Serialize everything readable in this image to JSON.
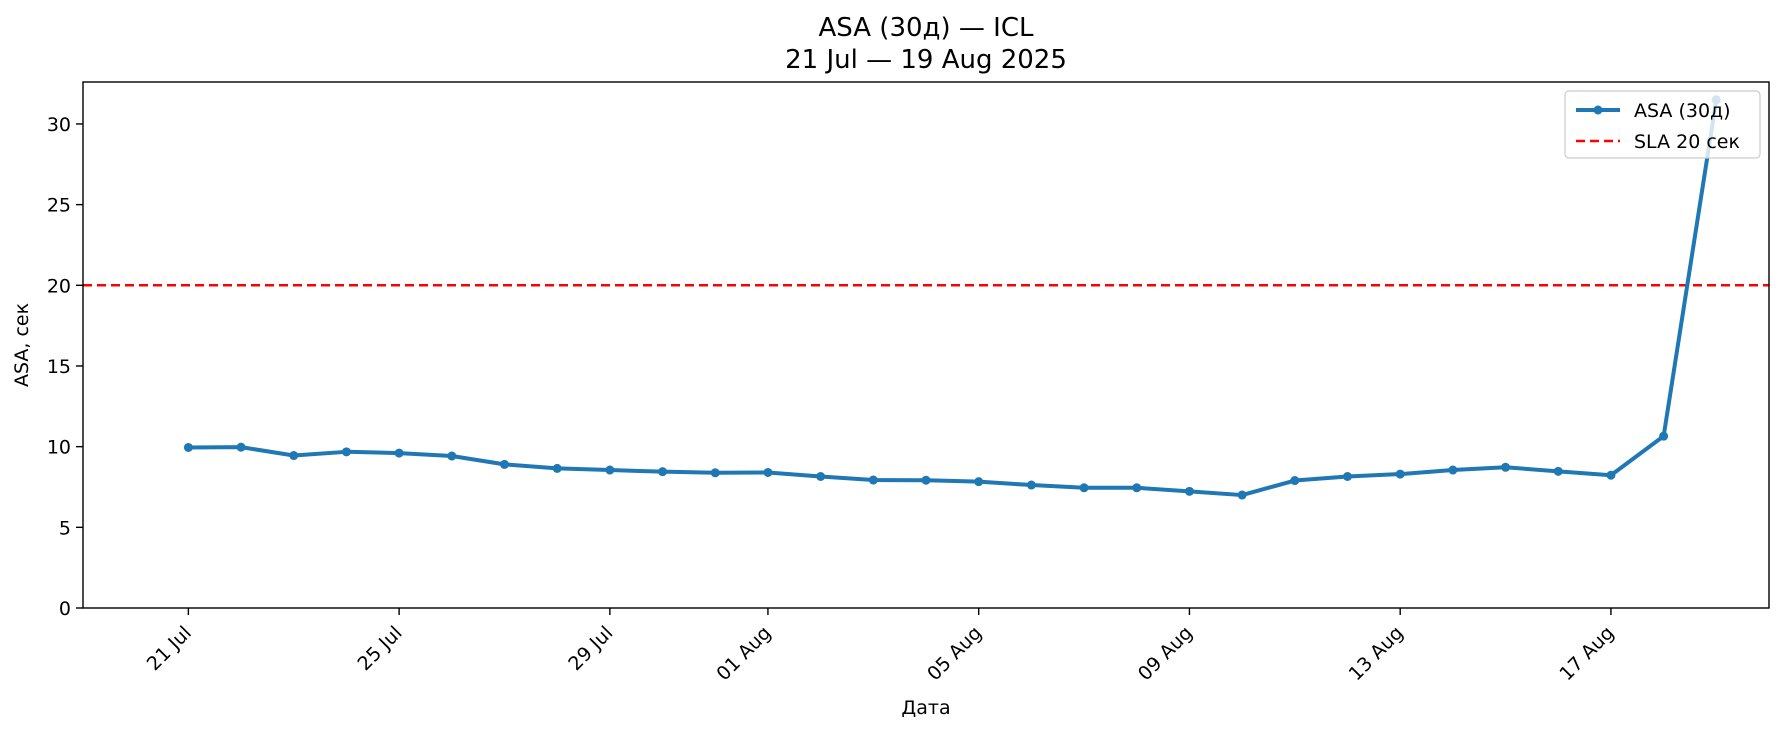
{
  "chart_data": {
    "type": "line",
    "title": "ASA (30д) — ICL",
    "subtitle": "21 Jul — 19 Aug 2025",
    "xlabel": "Дата",
    "ylabel": "ASA, сек",
    "x": [
      "2025-07-21",
      "2025-07-22",
      "2025-07-23",
      "2025-07-24",
      "2025-07-25",
      "2025-07-26",
      "2025-07-27",
      "2025-07-28",
      "2025-07-29",
      "2025-07-30",
      "2025-07-31",
      "2025-08-01",
      "2025-08-02",
      "2025-08-03",
      "2025-08-04",
      "2025-08-05",
      "2025-08-06",
      "2025-08-07",
      "2025-08-08",
      "2025-08-09",
      "2025-08-10",
      "2025-08-11",
      "2025-08-12",
      "2025-08-13",
      "2025-08-14",
      "2025-08-15",
      "2025-08-16",
      "2025-08-17",
      "2025-08-18",
      "2025-08-19"
    ],
    "series": [
      {
        "name": "ASA (30д)",
        "color": "#1f77b4",
        "values": [
          9.95,
          9.97,
          9.45,
          9.68,
          9.6,
          9.42,
          8.9,
          8.65,
          8.55,
          8.45,
          8.38,
          8.4,
          8.15,
          7.93,
          7.92,
          7.83,
          7.62,
          7.45,
          7.45,
          7.23,
          7.0,
          7.9,
          8.15,
          8.3,
          8.55,
          8.72,
          8.47,
          8.23,
          10.65,
          31.5
        ]
      }
    ],
    "reference_lines": [
      {
        "name": "SLA 20 сек",
        "y": 20,
        "color": "#ff0000",
        "style": "dashed"
      }
    ],
    "xticks": [
      {
        "date": "2025-07-21",
        "label": "21 Jul"
      },
      {
        "date": "2025-07-25",
        "label": "25 Jul"
      },
      {
        "date": "2025-07-29",
        "label": "29 Jul"
      },
      {
        "date": "2025-08-01",
        "label": "01 Aug"
      },
      {
        "date": "2025-08-05",
        "label": "05 Aug"
      },
      {
        "date": "2025-08-09",
        "label": "09 Aug"
      },
      {
        "date": "2025-08-13",
        "label": "13 Aug"
      },
      {
        "date": "2025-08-17",
        "label": "17 Aug"
      }
    ],
    "yticks": [
      "0",
      "5",
      "10",
      "15",
      "20",
      "25",
      "30"
    ],
    "ylim": [
      0,
      32.6
    ],
    "xlim": [
      "2025-07-19",
      "2025-08-20"
    ],
    "grid": false,
    "legend_position": "top-right"
  }
}
